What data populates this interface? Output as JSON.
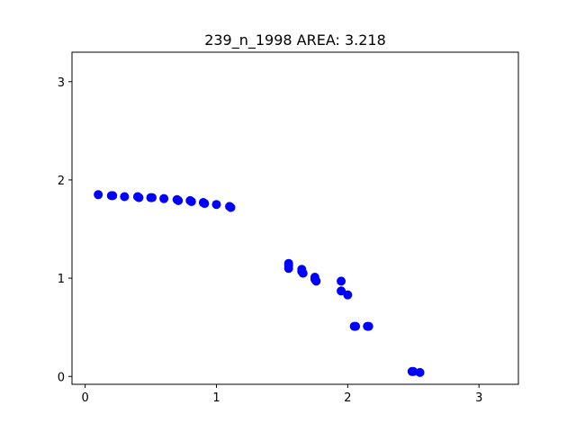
{
  "chart_data": {
    "type": "scatter",
    "title": "239_n_1998 AREA: 3.218",
    "xlabel": "",
    "ylabel": "",
    "xlim": [
      -0.1,
      3.3
    ],
    "ylim": [
      -0.08,
      3.3
    ],
    "xticks": [
      0,
      1,
      2,
      3
    ],
    "yticks": [
      0,
      1,
      2,
      3
    ],
    "grid": false,
    "marker_color": "#0000ff",
    "points": [
      {
        "x": 0.1,
        "y": 1.85
      },
      {
        "x": 0.2,
        "y": 1.84
      },
      {
        "x": 0.21,
        "y": 1.84
      },
      {
        "x": 0.3,
        "y": 1.83
      },
      {
        "x": 0.4,
        "y": 1.83
      },
      {
        "x": 0.41,
        "y": 1.82
      },
      {
        "x": 0.5,
        "y": 1.82
      },
      {
        "x": 0.51,
        "y": 1.82
      },
      {
        "x": 0.6,
        "y": 1.81
      },
      {
        "x": 0.7,
        "y": 1.8
      },
      {
        "x": 0.71,
        "y": 1.79
      },
      {
        "x": 0.8,
        "y": 1.79
      },
      {
        "x": 0.81,
        "y": 1.78
      },
      {
        "x": 0.9,
        "y": 1.77
      },
      {
        "x": 0.91,
        "y": 1.76
      },
      {
        "x": 1.0,
        "y": 1.75
      },
      {
        "x": 1.1,
        "y": 1.73
      },
      {
        "x": 1.11,
        "y": 1.72
      },
      {
        "x": 1.55,
        "y": 1.15
      },
      {
        "x": 1.55,
        "y": 1.13
      },
      {
        "x": 1.55,
        "y": 1.1
      },
      {
        "x": 1.65,
        "y": 1.09
      },
      {
        "x": 1.65,
        "y": 1.07
      },
      {
        "x": 1.66,
        "y": 1.05
      },
      {
        "x": 1.75,
        "y": 1.01
      },
      {
        "x": 1.75,
        "y": 0.99
      },
      {
        "x": 1.76,
        "y": 0.97
      },
      {
        "x": 1.95,
        "y": 0.97
      },
      {
        "x": 1.95,
        "y": 0.87
      },
      {
        "x": 2.0,
        "y": 0.83
      },
      {
        "x": 2.05,
        "y": 0.51
      },
      {
        "x": 2.06,
        "y": 0.51
      },
      {
        "x": 2.15,
        "y": 0.51
      },
      {
        "x": 2.16,
        "y": 0.51
      },
      {
        "x": 2.49,
        "y": 0.05
      },
      {
        "x": 2.5,
        "y": 0.05
      },
      {
        "x": 2.55,
        "y": 0.04
      }
    ]
  }
}
